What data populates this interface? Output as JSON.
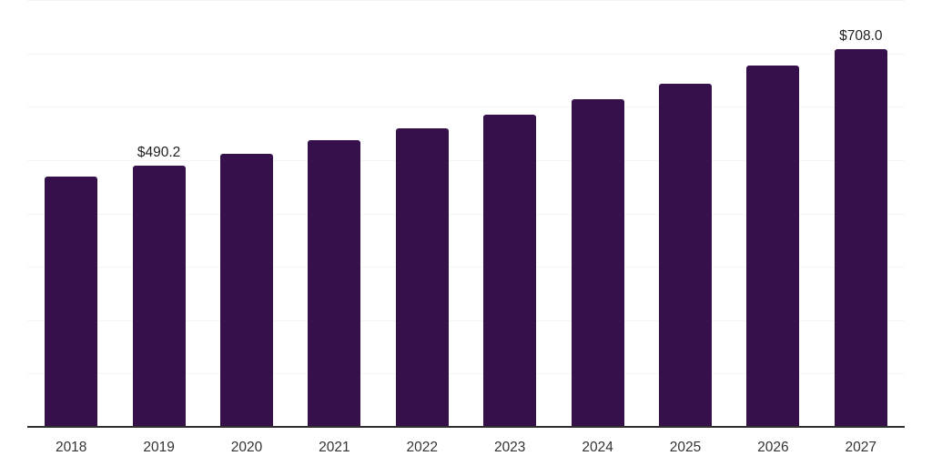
{
  "chart": {
    "bar_color": "#36104b",
    "grid_color": "#f4f4f4",
    "axis_color": "#2f2f2f",
    "data_label_color": "#1f1f1f",
    "tick_label_color": "#333333",
    "background_color": "#ffffff"
  },
  "chart_data": {
    "type": "bar",
    "categories": [
      "2018",
      "2019",
      "2020",
      "2021",
      "2022",
      "2023",
      "2024",
      "2025",
      "2026",
      "2027"
    ],
    "values": [
      468.8,
      490.2,
      511.6,
      536.7,
      559.5,
      584.6,
      614.8,
      642.8,
      677.0,
      708.0
    ],
    "data_labels": [
      "",
      "$490.2",
      "",
      "",
      "",
      "",
      "",
      "",
      "",
      "$708.0"
    ],
    "title": "",
    "xlabel": "",
    "ylabel": "",
    "ylim": [
      0,
      800
    ],
    "gridline_step": 100,
    "grid": "horizontal",
    "y_axis_ticks_visible": false,
    "legend": "none"
  }
}
